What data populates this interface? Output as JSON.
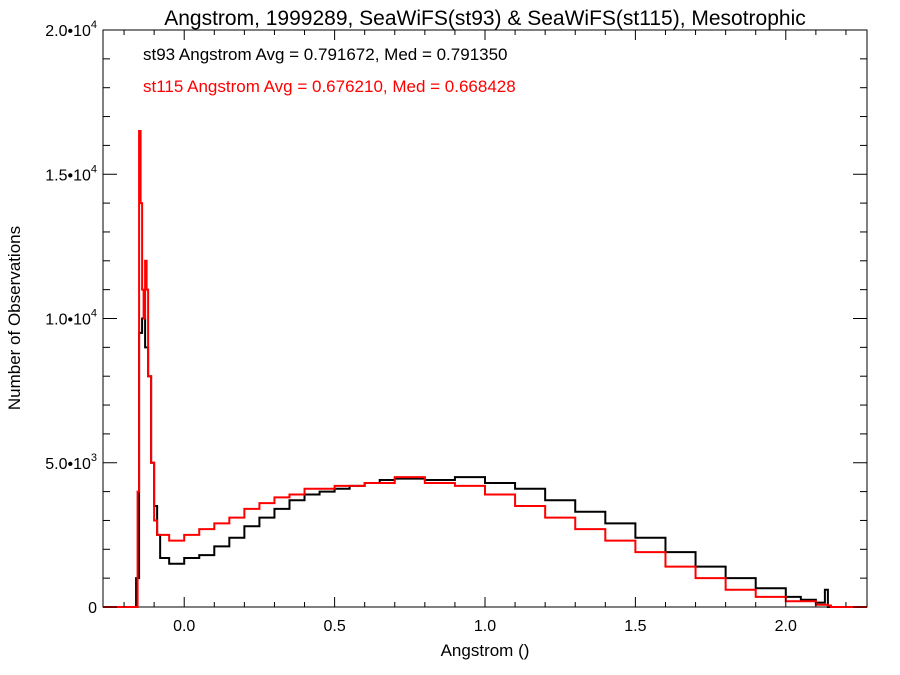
{
  "chart_data": {
    "type": "line",
    "title": "Angstrom, 1999289, SeaWiFS(st93) & SeaWiFS(st115), Mesotrophic",
    "xlabel": "Angstrom ()",
    "ylabel": "Number of Observations",
    "xlim": [
      -0.27,
      2.27
    ],
    "ylim": [
      0,
      20000
    ],
    "x_ticks": [
      {
        "value": 0.0,
        "label": "0.0"
      },
      {
        "value": 0.5,
        "label": "0.5"
      },
      {
        "value": 1.0,
        "label": "1.0"
      },
      {
        "value": 1.5,
        "label": "1.5"
      },
      {
        "value": 2.0,
        "label": "2.0"
      }
    ],
    "y_ticks": [
      {
        "value": 0,
        "base": "0",
        "exp": ""
      },
      {
        "value": 5000,
        "base": "5.0•10",
        "exp": "3"
      },
      {
        "value": 10000,
        "base": "1.0•10",
        "exp": "4"
      },
      {
        "value": 15000,
        "base": "1.5•10",
        "exp": "4"
      },
      {
        "value": 20000,
        "base": "2.0•10",
        "exp": "4"
      }
    ],
    "grid": false,
    "legend_position": "top-left",
    "annotations": [
      {
        "text": "st93 Angstrom Avg = 0.791672, Med = 0.791350",
        "color": "#000000"
      },
      {
        "text": "st115 Angstrom Avg = 0.676210, Med = 0.668428",
        "color": "#ff0000"
      }
    ],
    "series": [
      {
        "color": "#000000",
        "style": "step",
        "points": [
          [
            -0.27,
            0
          ],
          [
            -0.18,
            0
          ],
          [
            -0.16,
            1000
          ],
          [
            -0.15,
            9500
          ],
          [
            -0.14,
            10000
          ],
          [
            -0.13,
            9000
          ],
          [
            -0.12,
            8000
          ],
          [
            -0.11,
            5000
          ],
          [
            -0.1,
            3500
          ],
          [
            -0.09,
            2500
          ],
          [
            -0.08,
            1700
          ],
          [
            -0.05,
            1500
          ],
          [
            0.0,
            1700
          ],
          [
            0.05,
            1800
          ],
          [
            0.1,
            2100
          ],
          [
            0.15,
            2400
          ],
          [
            0.2,
            2800
          ],
          [
            0.25,
            3100
          ],
          [
            0.3,
            3400
          ],
          [
            0.35,
            3700
          ],
          [
            0.4,
            3900
          ],
          [
            0.45,
            4000
          ],
          [
            0.5,
            4100
          ],
          [
            0.55,
            4200
          ],
          [
            0.6,
            4300
          ],
          [
            0.65,
            4400
          ],
          [
            0.7,
            4450
          ],
          [
            0.8,
            4400
          ],
          [
            0.9,
            4500
          ],
          [
            1.0,
            4300
          ],
          [
            1.1,
            4100
          ],
          [
            1.2,
            3700
          ],
          [
            1.3,
            3300
          ],
          [
            1.4,
            2900
          ],
          [
            1.5,
            2400
          ],
          [
            1.6,
            1900
          ],
          [
            1.7,
            1400
          ],
          [
            1.8,
            1000
          ],
          [
            1.9,
            650
          ],
          [
            2.0,
            350
          ],
          [
            2.05,
            250
          ],
          [
            2.1,
            150
          ],
          [
            2.13,
            600
          ],
          [
            2.14,
            0
          ],
          [
            2.27,
            0
          ]
        ]
      },
      {
        "color": "#ff0000",
        "style": "step",
        "points": [
          [
            -0.27,
            0
          ],
          [
            -0.16,
            0
          ],
          [
            -0.155,
            4000
          ],
          [
            -0.15,
            16500
          ],
          [
            -0.145,
            14000
          ],
          [
            -0.14,
            11000
          ],
          [
            -0.135,
            10000
          ],
          [
            -0.13,
            12000
          ],
          [
            -0.125,
            11000
          ],
          [
            -0.12,
            8000
          ],
          [
            -0.11,
            5000
          ],
          [
            -0.1,
            3000
          ],
          [
            -0.09,
            2500
          ],
          [
            -0.05,
            2300
          ],
          [
            0.0,
            2500
          ],
          [
            0.05,
            2700
          ],
          [
            0.1,
            2900
          ],
          [
            0.15,
            3100
          ],
          [
            0.2,
            3400
          ],
          [
            0.25,
            3600
          ],
          [
            0.3,
            3800
          ],
          [
            0.35,
            3900
          ],
          [
            0.4,
            4100
          ],
          [
            0.5,
            4200
          ],
          [
            0.6,
            4300
          ],
          [
            0.7,
            4500
          ],
          [
            0.8,
            4300
          ],
          [
            0.9,
            4200
          ],
          [
            1.0,
            3900
          ],
          [
            1.1,
            3500
          ],
          [
            1.2,
            3100
          ],
          [
            1.3,
            2700
          ],
          [
            1.4,
            2300
          ],
          [
            1.5,
            1900
          ],
          [
            1.6,
            1400
          ],
          [
            1.7,
            1000
          ],
          [
            1.8,
            600
          ],
          [
            1.9,
            350
          ],
          [
            2.0,
            200
          ],
          [
            2.1,
            80
          ],
          [
            2.14,
            50
          ],
          [
            2.15,
            0
          ],
          [
            2.27,
            0
          ]
        ]
      }
    ]
  }
}
